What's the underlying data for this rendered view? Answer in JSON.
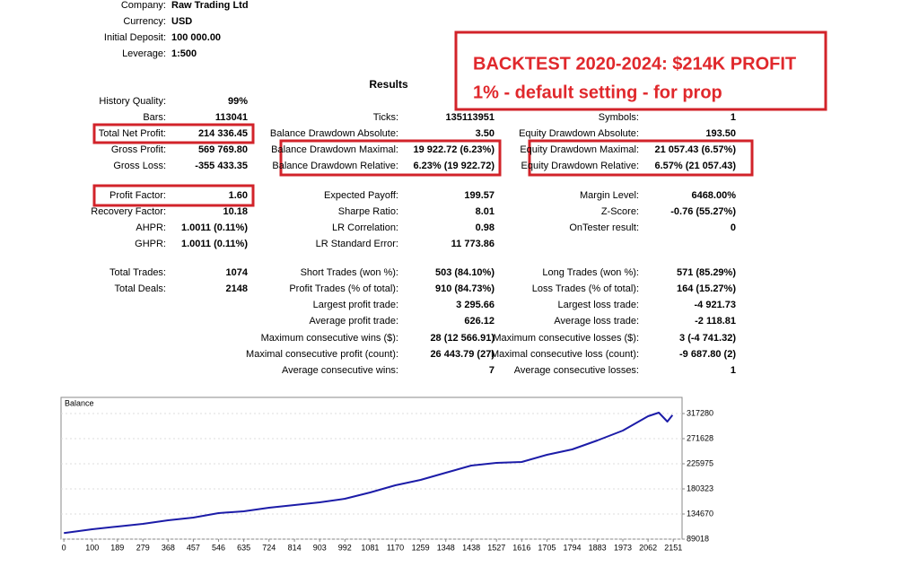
{
  "header": {
    "fields": [
      {
        "label": "Company:",
        "value": "Raw Trading Ltd"
      },
      {
        "label": "Currency:",
        "value": "USD"
      },
      {
        "label": "Initial Deposit:",
        "value": "100 000.00"
      },
      {
        "label": "Leverage:",
        "value": "1:500"
      }
    ]
  },
  "annotation": {
    "lines": [
      "BACKTEST 2020-2024: $214K PROFIT",
      "1% - default setting - for prop"
    ]
  },
  "results": {
    "title": "Results",
    "sections": [
      {
        "rows": [
          [
            {
              "label": "History Quality:",
              "value": "99%"
            },
            null,
            null
          ],
          [
            {
              "label": "Bars:",
              "value": "113041"
            },
            {
              "label": "Ticks:",
              "value": "135113951"
            },
            {
              "label": "Symbols:",
              "value": "1"
            }
          ],
          [
            {
              "label": "Total Net Profit:",
              "value": "214 336.45"
            },
            {
              "label": "Balance Drawdown Absolute:",
              "value": "3.50"
            },
            {
              "label": "Equity Drawdown Absolute:",
              "value": "193.50"
            }
          ],
          [
            {
              "label": "Gross Profit:",
              "value": "569 769.80"
            },
            {
              "label": "Balance Drawdown Maximal:",
              "value": "19 922.72 (6.23%)"
            },
            {
              "label": "Equity Drawdown Maximal:",
              "value": "21 057.43 (6.57%)"
            }
          ],
          [
            {
              "label": "Gross Loss:",
              "value": "-355 433.35"
            },
            {
              "label": "Balance Drawdown Relative:",
              "value": "6.23% (19 922.72)"
            },
            {
              "label": "Equity Drawdown Relative:",
              "value": "6.57% (21 057.43)"
            }
          ]
        ]
      },
      {
        "rows": [
          [
            {
              "label": "Profit Factor:",
              "value": "1.60"
            },
            {
              "label": "Expected Payoff:",
              "value": "199.57"
            },
            {
              "label": "Margin Level:",
              "value": "6468.00%"
            }
          ],
          [
            {
              "label": "Recovery Factor:",
              "value": "10.18"
            },
            {
              "label": "Sharpe Ratio:",
              "value": "8.01"
            },
            {
              "label": "Z-Score:",
              "value": "-0.76 (55.27%)"
            }
          ],
          [
            {
              "label": "AHPR:",
              "value": "1.0011 (0.11%)"
            },
            {
              "label": "LR Correlation:",
              "value": "0.98"
            },
            {
              "label": "OnTester result:",
              "value": "0"
            }
          ],
          [
            {
              "label": "GHPR:",
              "value": "1.0011 (0.11%)"
            },
            {
              "label": "LR Standard Error:",
              "value": "11 773.86"
            },
            null
          ]
        ]
      },
      {
        "rows": [
          [
            {
              "label": "Total Trades:",
              "value": "1074"
            },
            {
              "label": "Short Trades (won %):",
              "value": "503 (84.10%)"
            },
            {
              "label": "Long Trades (won %):",
              "value": "571 (85.29%)"
            }
          ],
          [
            {
              "label": "Total Deals:",
              "value": "2148"
            },
            {
              "label": "Profit Trades (% of total):",
              "value": "910 (84.73%)"
            },
            {
              "label": "Loss Trades (% of total):",
              "value": "164 (15.27%)"
            }
          ],
          [
            null,
            {
              "label": "Largest profit trade:",
              "value": "3 295.66"
            },
            {
              "label": "Largest loss trade:",
              "value": "-4 921.73"
            }
          ],
          [
            null,
            {
              "label": "Average profit trade:",
              "value": "626.12"
            },
            {
              "label": "Average loss trade:",
              "value": "-2 118.81"
            }
          ],
          [
            null,
            {
              "label": "Maximum consecutive wins ($):",
              "value": "28 (12 566.91)"
            },
            {
              "label": "Maximum consecutive losses ($):",
              "value": "3 (-4 741.32)"
            }
          ],
          [
            null,
            {
              "label": "Maximal consecutive profit (count):",
              "value": "26 443.79 (27)"
            },
            {
              "label": "Maximal consecutive loss (count):",
              "value": "-9 687.80 (2)"
            }
          ],
          [
            null,
            {
              "label": "Average consecutive wins:",
              "value": "7"
            },
            {
              "label": "Average consecutive losses:",
              "value": "1"
            }
          ]
        ]
      }
    ]
  },
  "chart": {
    "type": "line",
    "title": "Balance",
    "color": "#1c1ca8",
    "x": [
      0,
      100,
      189,
      279,
      368,
      457,
      546,
      635,
      724,
      814,
      903,
      992,
      1081,
      1170,
      1259,
      1348,
      1438,
      1527,
      1616,
      1705,
      1794,
      1883,
      1973,
      2062,
      2100,
      2130,
      2148
    ],
    "values": [
      100000,
      106955,
      111846,
      116738,
      123260,
      128152,
      136305,
      139567,
      146090,
      150981,
      155873,
      162396,
      173810,
      186855,
      196640,
      209683,
      222728,
      227620,
      229250,
      242296,
      252079,
      268386,
      286323,
      312412,
      318936,
      302630,
      314336
    ],
    "xlim": [
      -10,
      2182
    ],
    "ylim": [
      89018,
      346650
    ],
    "xticks": [
      0,
      100,
      189,
      279,
      368,
      457,
      546,
      635,
      724,
      814,
      903,
      992,
      1081,
      1170,
      1259,
      1348,
      1438,
      1527,
      1616,
      1705,
      1794,
      1883,
      1973,
      2062,
      2151
    ],
    "yticks": [
      89018,
      134670,
      180323,
      225975,
      271628,
      317280
    ]
  }
}
